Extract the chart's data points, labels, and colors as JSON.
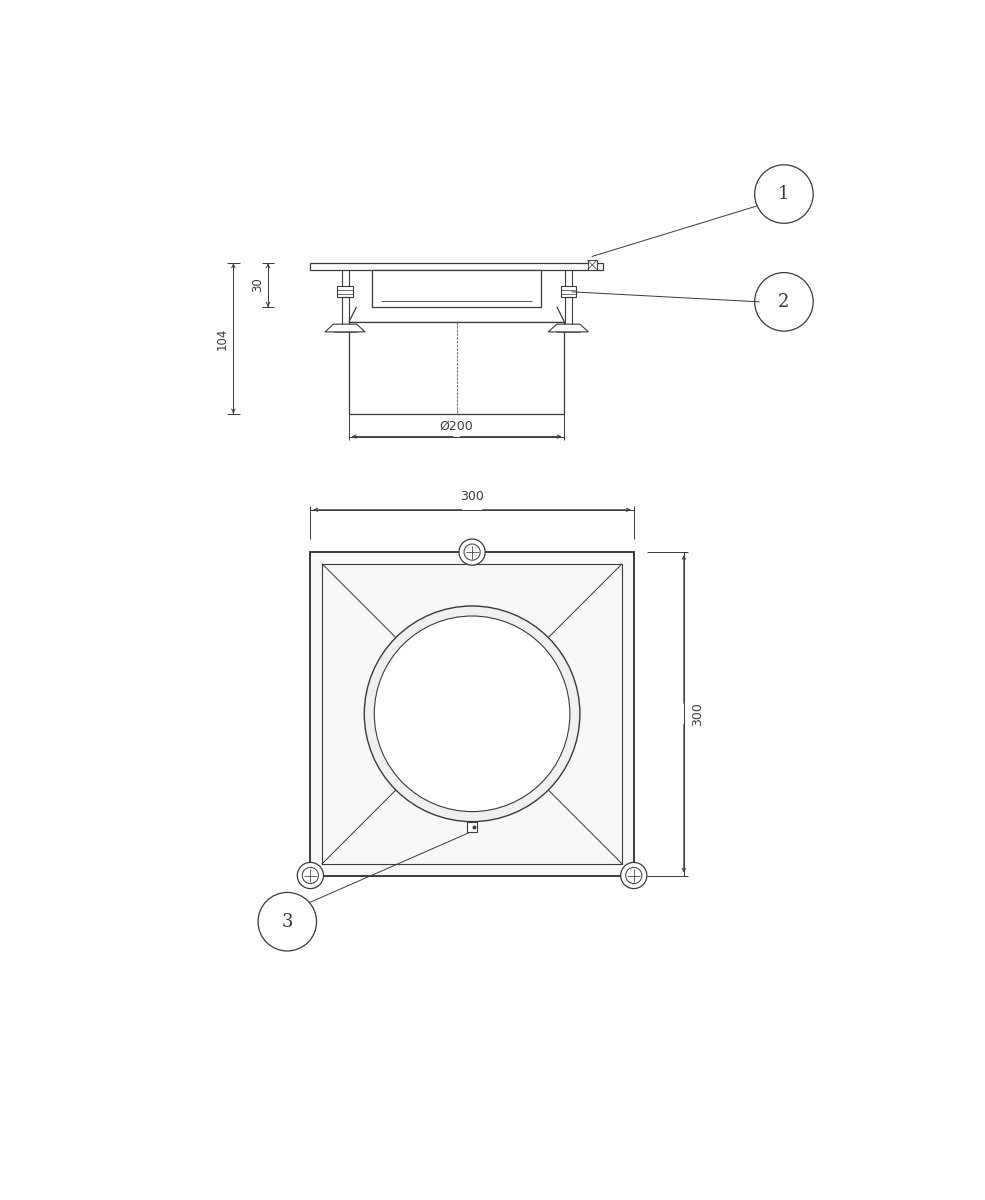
{
  "bg_color": "#ffffff",
  "line_color": "#3a3a3a",
  "dim_color": "#3a3a3a",
  "dim_30": "30",
  "dim_104": "104",
  "dim_200": "Ø200",
  "dim_300_top": "300",
  "dim_300_right": "300"
}
